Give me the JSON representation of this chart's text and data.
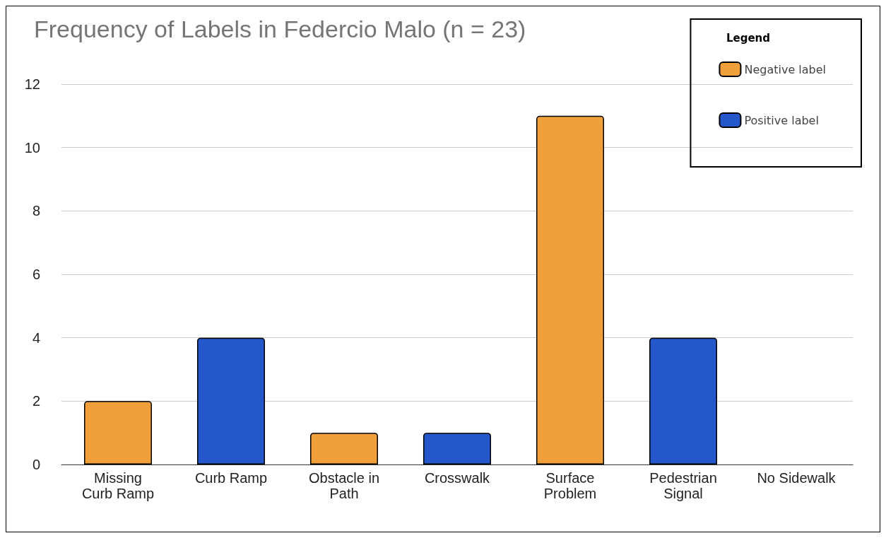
{
  "chart_data": {
    "type": "bar",
    "title": "Frequency of Labels in Federcio Malo (n = 23)",
    "categories": [
      "Missing\nCurb Ramp",
      "Curb Ramp",
      "Obstacle in\nPath",
      "Crosswalk",
      "Surface\nProblem",
      "Pedestrian\nSignal",
      "No Sidewalk"
    ],
    "series": [
      {
        "name": "Negative label",
        "color": "#f0a03a",
        "values": [
          2,
          null,
          1,
          null,
          11,
          null,
          0
        ]
      },
      {
        "name": "Positive label",
        "color": "#2457c9",
        "values": [
          null,
          4,
          null,
          1,
          null,
          4,
          null
        ]
      }
    ],
    "stacked": true,
    "ylim": [
      0,
      12
    ],
    "yticks": [
      0,
      2,
      4,
      6,
      8,
      10,
      12
    ],
    "grid": "y",
    "legend": "top right",
    "legend_title": "Legend"
  }
}
